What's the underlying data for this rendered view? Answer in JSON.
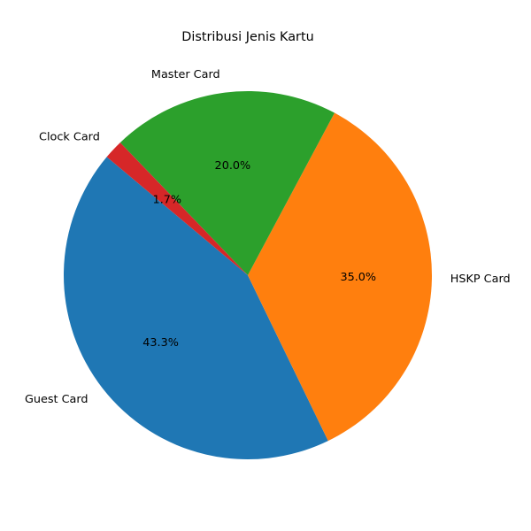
{
  "chart_data": {
    "type": "pie",
    "title": "Distribusi Jenis Kartu",
    "start_angle_deg": 140,
    "direction": "counterclockwise",
    "slices": [
      {
        "label": "Guest Card",
        "value": 43.3,
        "pct_label": "43.3%",
        "color": "#1f77b4"
      },
      {
        "label": "HSKP Card",
        "value": 35.0,
        "pct_label": "35.0%",
        "color": "#ff7f0e"
      },
      {
        "label": "Master Card",
        "value": 20.0,
        "pct_label": "20.0%",
        "color": "#2ca02c"
      },
      {
        "label": "Clock Card",
        "value": 1.7,
        "pct_label": "1.7%",
        "color": "#d62728"
      }
    ]
  }
}
